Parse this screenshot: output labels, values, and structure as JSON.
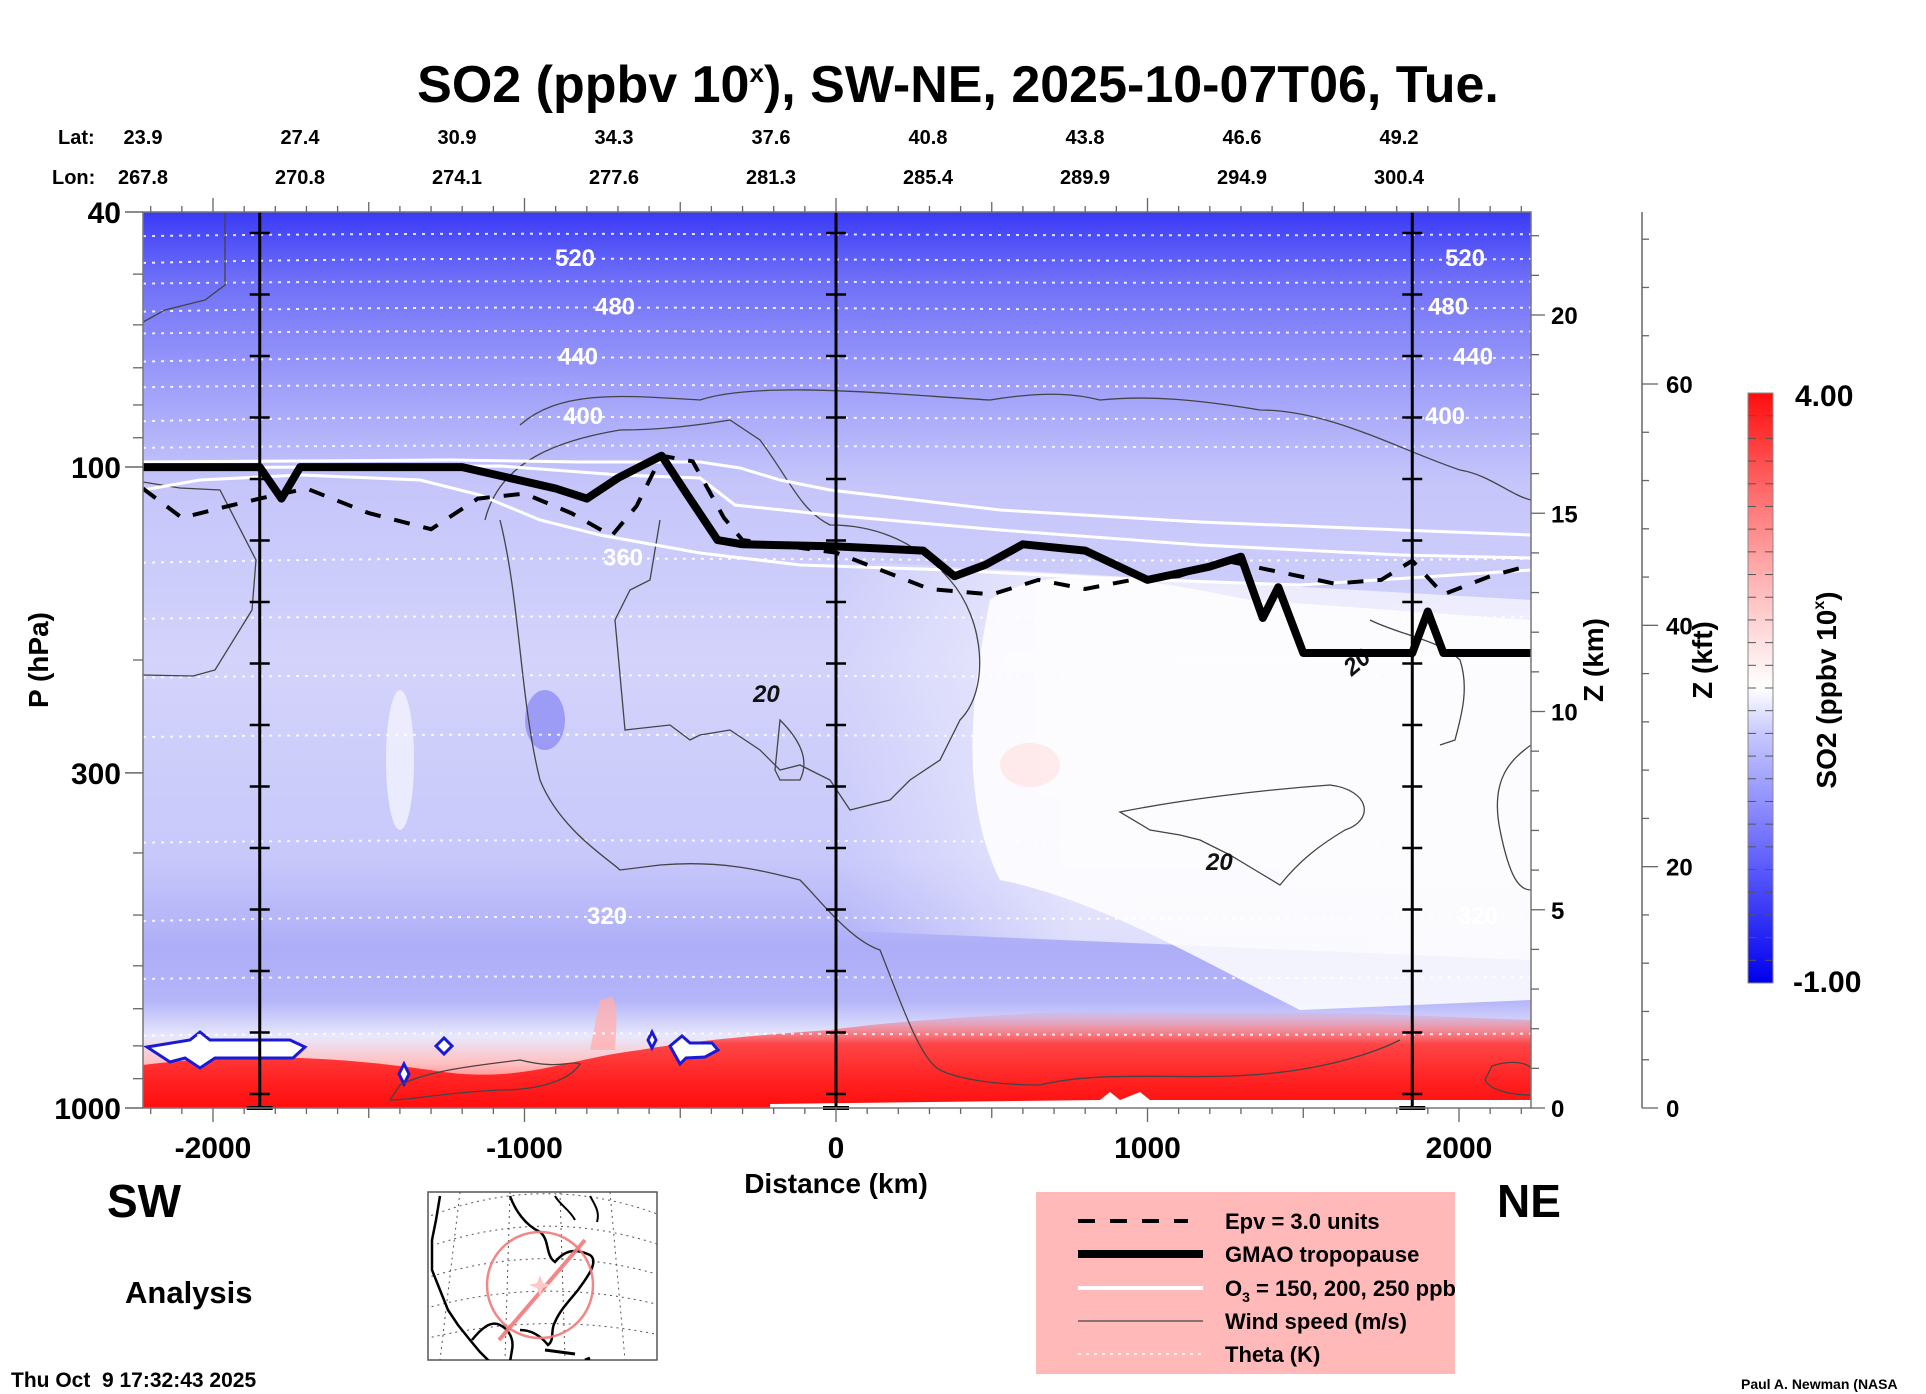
{
  "chart_data": {
    "type": "heatmap",
    "title": "SO2 (ppbv 10",
    "title_superscript": "x",
    "title_rest": "), SW-NE, 2025-10-07T06, Tue.",
    "xlabel": "Distance (km)",
    "ylabel": "P (hPa)",
    "y2label": "Z (km)",
    "y3label": "Z (kft)",
    "xlim": [
      -2225,
      2235
    ],
    "ylim": [
      1000,
      40
    ],
    "y_scale": "log",
    "x_ticks": [
      -2000,
      -1000,
      0,
      1000,
      2000
    ],
    "x_tick_labels": [
      "-2000",
      "-1000",
      "0",
      "1000",
      "2000"
    ],
    "y_ticks": [
      40,
      100,
      300,
      1000
    ],
    "y_tick_labels": [
      "40",
      "100",
      "300",
      "1000"
    ],
    "z_km_ticks": [
      0,
      5,
      10,
      15,
      20
    ],
    "z_km_tick_labels": [
      "0",
      "5",
      "10",
      "15",
      "20"
    ],
    "z_kft_ticks": [
      0,
      20,
      40,
      60
    ],
    "z_kft_tick_labels": [
      "0",
      "20",
      "40",
      "60"
    ],
    "vertical_markers_km": [
      -1850,
      0,
      1850
    ],
    "lat_label": "Lat:",
    "lon_label": "Lon:",
    "latitudes": [
      "23.9",
      "27.4",
      "30.9",
      "34.3",
      "37.6",
      "40.8",
      "43.8",
      "46.6",
      "49.2"
    ],
    "longitudes": [
      "267.8",
      "270.8",
      "274.1",
      "277.6",
      "281.3",
      "285.4",
      "289.9",
      "294.9",
      "300.4"
    ],
    "colorbar": {
      "label": "SO2 (ppbv 10",
      "label_superscript": "x",
      "label_rest": ")",
      "min": -1.0,
      "max": 4.0,
      "min_label": "-1.00",
      "max_label": "4.00",
      "low_color": "#0000ee",
      "mid_color": "#ffffff",
      "high_color": "#ff0000",
      "levels": 26
    },
    "theta_contours": [
      {
        "value": 520,
        "label": "520",
        "p": 47
      },
      {
        "value": 480,
        "label": "480",
        "p": 56
      },
      {
        "value": 440,
        "label": "440",
        "p": 67
      },
      {
        "value": 400,
        "label": "400",
        "p": 83
      },
      {
        "value": 360,
        "label": "360",
        "p": 138
      },
      {
        "value": 320,
        "label": "320",
        "p": 500
      }
    ],
    "wind_contour_labels": [
      "20",
      "20",
      "20"
    ],
    "tropopause_hpa": [
      [
        -2225,
        100
      ],
      [
        -1850,
        100
      ],
      [
        -1780,
        112
      ],
      [
        -1720,
        100
      ],
      [
        -1400,
        100
      ],
      [
        -1200,
        100
      ],
      [
        -900,
        108
      ],
      [
        -800,
        112
      ],
      [
        -700,
        104
      ],
      [
        -560,
        96
      ],
      [
        -480,
        110
      ],
      [
        -380,
        130
      ],
      [
        -300,
        132
      ],
      [
        0,
        133
      ],
      [
        280,
        135
      ],
      [
        380,
        148
      ],
      [
        480,
        142
      ],
      [
        600,
        132
      ],
      [
        800,
        135
      ],
      [
        1000,
        150
      ],
      [
        1200,
        143
      ],
      [
        1300,
        138
      ],
      [
        1370,
        172
      ],
      [
        1420,
        154
      ],
      [
        1500,
        195
      ],
      [
        1850,
        195
      ],
      [
        1900,
        168
      ],
      [
        1950,
        195
      ],
      [
        2235,
        195
      ]
    ],
    "epv_hpa": [
      [
        -2225,
        108
      ],
      [
        -2100,
        120
      ],
      [
        -1950,
        115
      ],
      [
        -1850,
        112
      ],
      [
        -1700,
        108
      ],
      [
        -1500,
        118
      ],
      [
        -1300,
        125
      ],
      [
        -1150,
        112
      ],
      [
        -1000,
        110
      ],
      [
        -850,
        118
      ],
      [
        -720,
        128
      ],
      [
        -640,
        115
      ],
      [
        -560,
        96
      ],
      [
        -460,
        98
      ],
      [
        -360,
        120
      ],
      [
        -300,
        130
      ],
      [
        0,
        136
      ],
      [
        300,
        155
      ],
      [
        500,
        158
      ],
      [
        650,
        150
      ],
      [
        800,
        155
      ],
      [
        950,
        150
      ],
      [
        1100,
        148
      ],
      [
        1250,
        140
      ],
      [
        1400,
        145
      ],
      [
        1600,
        152
      ],
      [
        1750,
        150
      ],
      [
        1850,
        140
      ],
      [
        1950,
        158
      ],
      [
        2100,
        148
      ],
      [
        2235,
        142
      ]
    ],
    "legend": {
      "position": "bottom-right",
      "entries": [
        {
          "label": "Epv = 3.0 units",
          "style": "dashed-thick-black"
        },
        {
          "label": "GMAO tropopause",
          "style": "solid-thick-black"
        },
        {
          "label": "O",
          "label_sub": "3",
          "label_rest": " = 150, 200, 250 ppb",
          "style": "solid-white"
        },
        {
          "label": "Wind speed (m/s)",
          "style": "solid-thin-gray"
        },
        {
          "label": "Theta (K)",
          "style": "dotted-white"
        }
      ],
      "background": "#ffb9b9"
    },
    "grid": false
  },
  "labels": {
    "sw": "SW",
    "ne": "NE",
    "analysis": "Analysis",
    "timestamp": "Thu Oct  9 17:32:43 2025",
    "credit": "Paul A. Newman (NASA"
  },
  "map_inset": {
    "description": "North America polar stereographic inset with SW-NE transect",
    "transect_color": "#f27a7a"
  }
}
